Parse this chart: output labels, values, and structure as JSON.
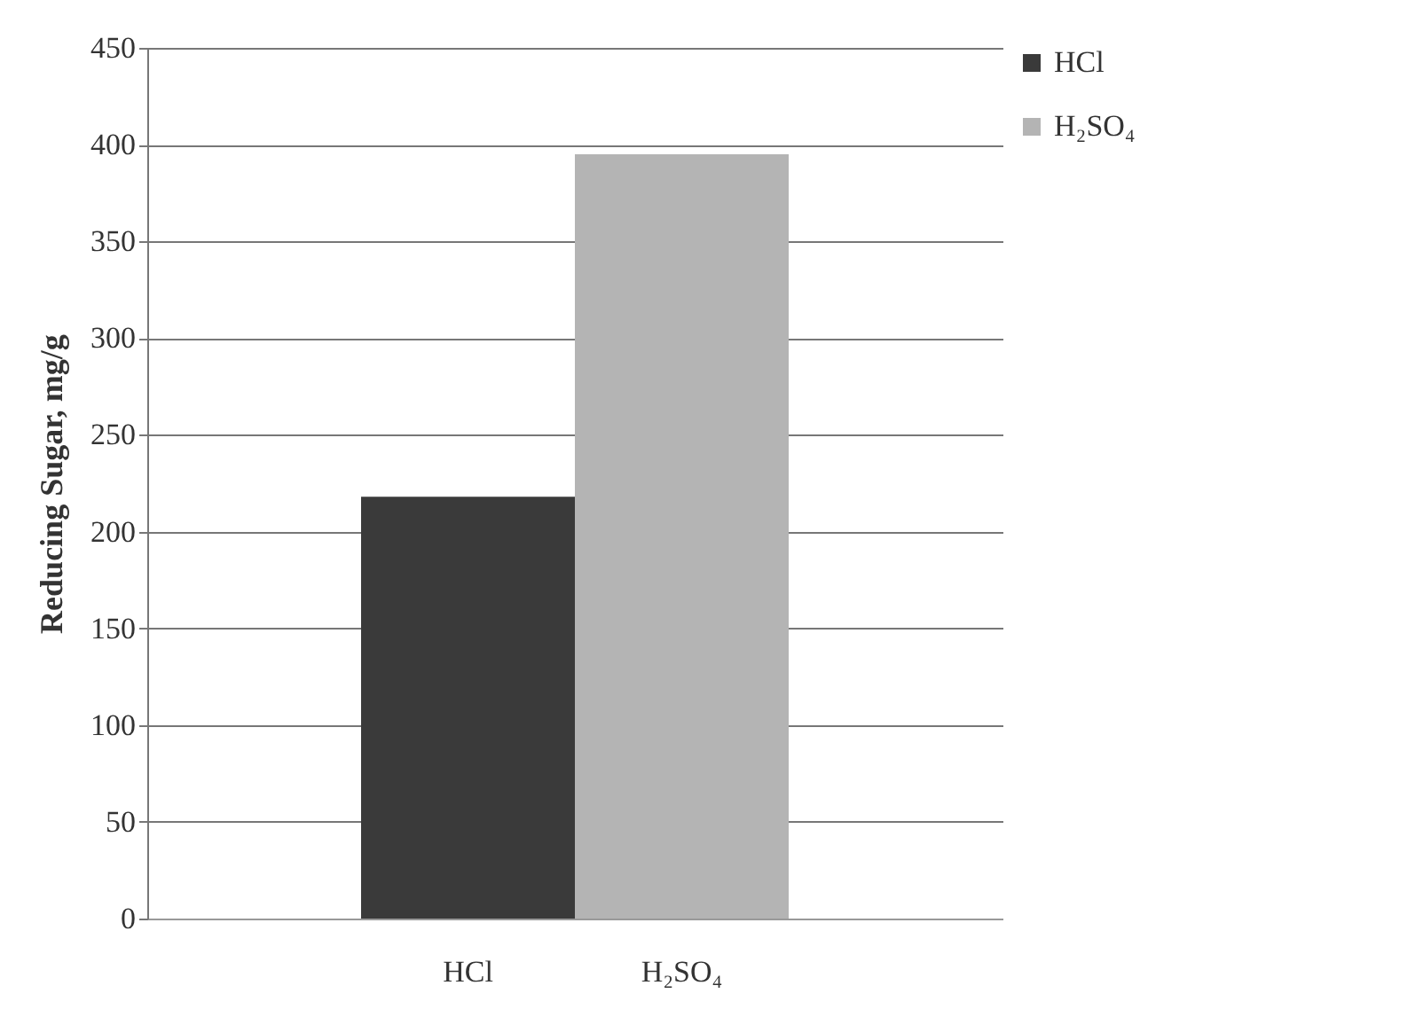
{
  "chart_data": {
    "type": "bar",
    "ylabel": "Reducing Sugar, mg/g",
    "categories": [
      "HCl",
      "H₂SO₄"
    ],
    "series": [
      {
        "name": "HCl",
        "color": "#3a3a3a",
        "values": [
          218,
          null
        ]
      },
      {
        "name": "H₂SO₄",
        "color": "#b4b4b4",
        "values": [
          null,
          395
        ]
      }
    ],
    "ylim": [
      0,
      450
    ],
    "yticks": [
      0,
      50,
      100,
      150,
      200,
      250,
      300,
      350,
      400,
      450
    ],
    "grid": "y",
    "legend": "right"
  }
}
